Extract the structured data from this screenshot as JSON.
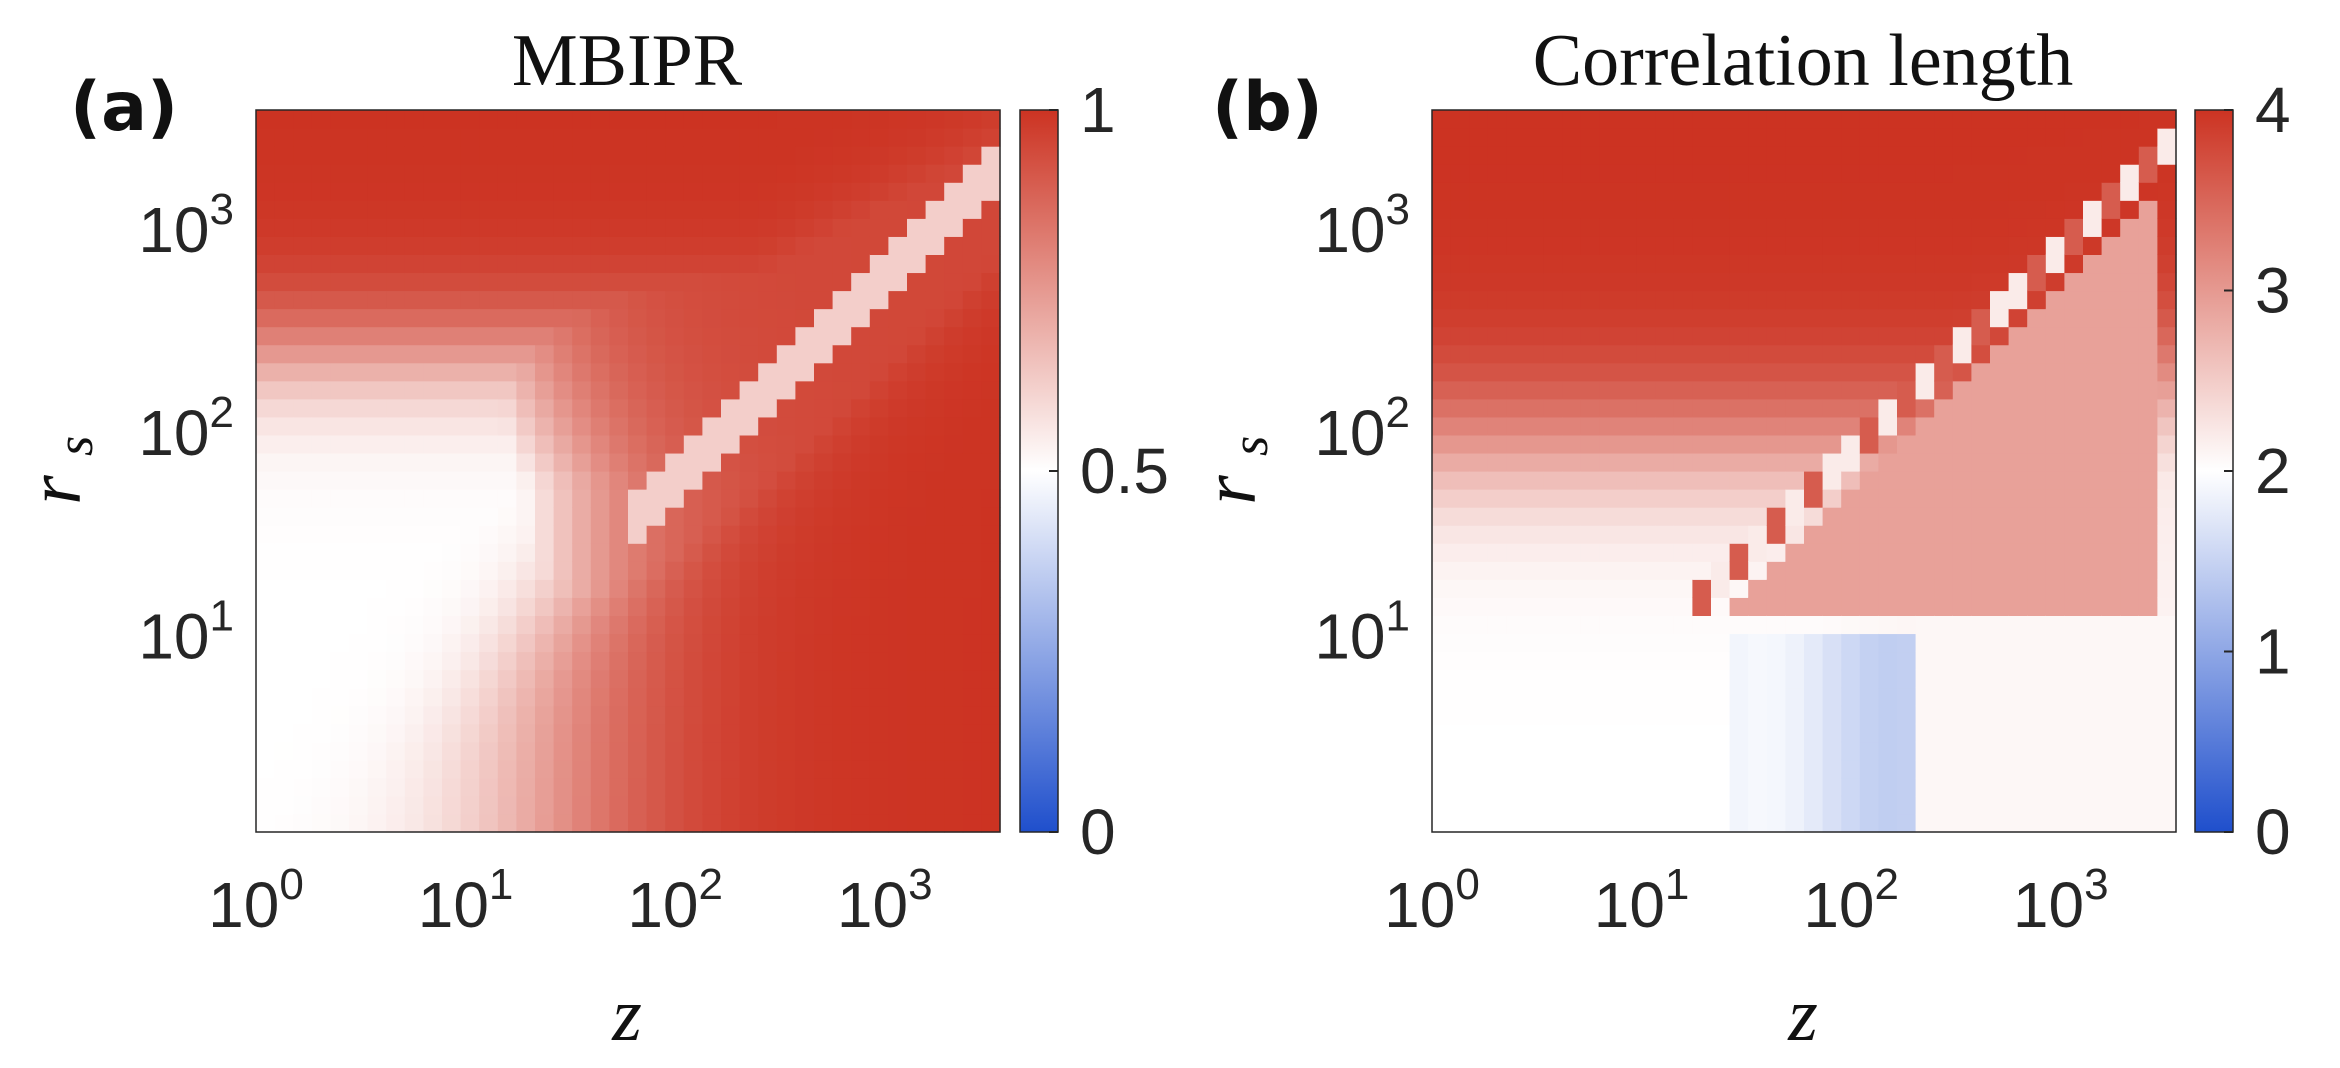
{
  "chart_data": [
    {
      "type": "heatmap",
      "panel_label": "(a)",
      "title": "MBIPR",
      "xlabel": "z",
      "ylabel": "r",
      "ylabel_sub": "s",
      "x_scale": "log",
      "y_scale": "log",
      "xlim_log10": [
        0,
        3.55
      ],
      "ylim_log10": [
        0,
        3.55
      ],
      "x_ticks": [
        {
          "base": "10",
          "exp": "0"
        },
        {
          "base": "10",
          "exp": "1"
        },
        {
          "base": "10",
          "exp": "2"
        },
        {
          "base": "10",
          "exp": "3"
        }
      ],
      "y_ticks": [
        {
          "base": "10",
          "exp": "1"
        },
        {
          "base": "10",
          "exp": "2"
        },
        {
          "base": "10",
          "exp": "3"
        }
      ],
      "colorbar": {
        "min": 0,
        "max": 1,
        "ticks": [
          "0",
          "0.5",
          "1"
        ],
        "colors": [
          "#1f4fcc",
          "#ffffff",
          "#cc3322"
        ]
      },
      "grid_size": 40
    },
    {
      "type": "heatmap",
      "panel_label": "(b)",
      "title": "Correlation length",
      "xlabel": "z",
      "ylabel": "r",
      "ylabel_sub": "s",
      "x_scale": "log",
      "y_scale": "log",
      "xlim_log10": [
        0,
        3.55
      ],
      "ylim_log10": [
        0,
        3.55
      ],
      "x_ticks": [
        {
          "base": "10",
          "exp": "0"
        },
        {
          "base": "10",
          "exp": "1"
        },
        {
          "base": "10",
          "exp": "2"
        },
        {
          "base": "10",
          "exp": "3"
        }
      ],
      "y_ticks": [
        {
          "base": "10",
          "exp": "1"
        },
        {
          "base": "10",
          "exp": "2"
        },
        {
          "base": "10",
          "exp": "3"
        }
      ],
      "colorbar": {
        "min": 0,
        "max": 4,
        "ticks": [
          "0",
          "1",
          "2",
          "3",
          "4"
        ],
        "colors": [
          "#1f4fcc",
          "#ffffff",
          "#cc3322"
        ]
      },
      "grid_size": 40
    }
  ]
}
